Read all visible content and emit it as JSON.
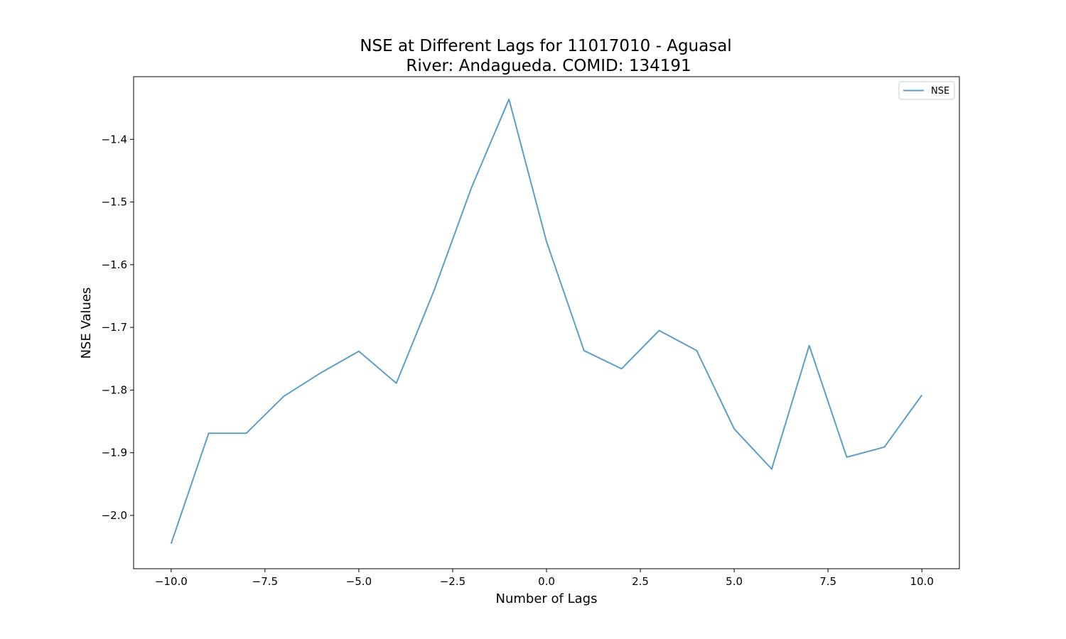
{
  "chart_data": {
    "type": "line",
    "title_line1": "NSE at Different Lags for 11017010 - Aguasal",
    "title_line2": "River: Andagueda. COMID: 134191",
    "xlabel": "Number of Lags",
    "ylabel": "NSE Values",
    "xlim": [
      -11.0,
      11.0
    ],
    "ylim": [
      -2.085,
      -1.3
    ],
    "xticks": [
      -10.0,
      -7.5,
      -5.0,
      -2.5,
      0.0,
      2.5,
      5.0,
      7.5,
      10.0
    ],
    "xtick_labels": [
      "−10.0",
      "−7.5",
      "−5.0",
      "−2.5",
      "0.0",
      "2.5",
      "5.0",
      "7.5",
      "10.0"
    ],
    "yticks": [
      -2.0,
      -1.9,
      -1.8,
      -1.7,
      -1.6,
      -1.5,
      -1.4
    ],
    "ytick_labels": [
      "−2.0",
      "−1.9",
      "−1.8",
      "−1.7",
      "−1.6",
      "−1.5",
      "−1.4"
    ],
    "grid": false,
    "legend_position": "top-right",
    "series": [
      {
        "name": "NSE",
        "color": "#5b9ec9",
        "x": [
          -10,
          -9,
          -8,
          -7,
          -6,
          -5,
          -4,
          -3,
          -2,
          -1,
          0,
          1,
          2,
          3,
          4,
          5,
          6,
          7,
          8,
          9,
          10
        ],
        "y": [
          -2.045,
          -1.869,
          -1.869,
          -1.81,
          -1.772,
          -1.738,
          -1.789,
          -1.642,
          -1.477,
          -1.336,
          -1.563,
          -1.737,
          -1.766,
          -1.705,
          -1.737,
          -1.862,
          -1.926,
          -1.729,
          -1.907,
          -1.891,
          -1.808
        ]
      }
    ]
  }
}
